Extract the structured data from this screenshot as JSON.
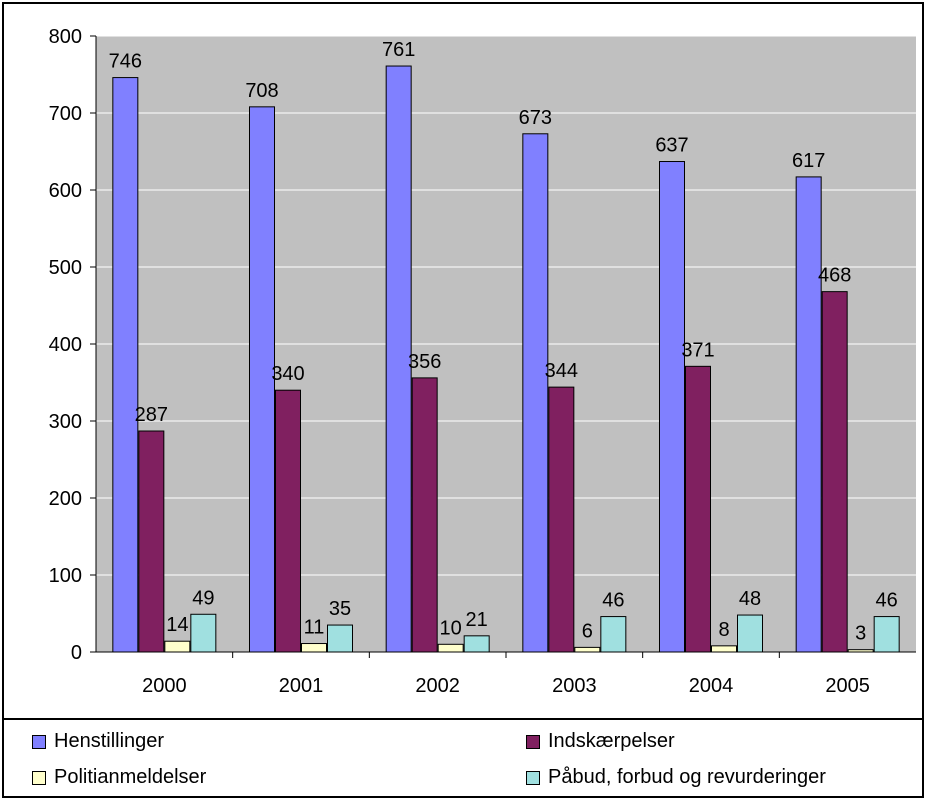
{
  "chart_data": {
    "type": "bar",
    "categories": [
      "2000",
      "2001",
      "2002",
      "2003",
      "2004",
      "2005"
    ],
    "ylim": [
      0,
      800
    ],
    "yticks": [
      0,
      100,
      200,
      300,
      400,
      500,
      600,
      700,
      800
    ],
    "grid": true,
    "legend_position": "bottom",
    "plot_background": "#c0c0c0",
    "series": [
      {
        "name": "Henstillinger",
        "color": "#8080ff",
        "values": [
          746,
          708,
          761,
          673,
          637,
          617
        ]
      },
      {
        "name": "Indskærpelser",
        "color": "#802060",
        "values": [
          287,
          340,
          356,
          344,
          371,
          468
        ]
      },
      {
        "name": "Politianmeldelser",
        "color": "#ffffcc",
        "values": [
          14,
          11,
          10,
          6,
          8,
          3
        ]
      },
      {
        "name": "Påbud, forbud og revurderinger",
        "color": "#a0e0e0",
        "values": [
          49,
          35,
          21,
          46,
          48,
          46
        ]
      }
    ]
  }
}
